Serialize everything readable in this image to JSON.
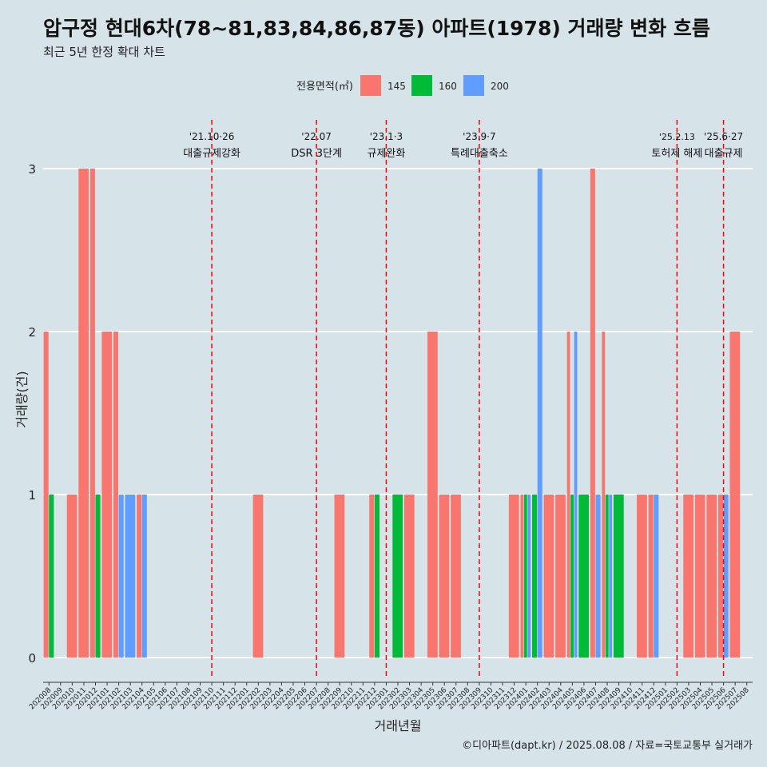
{
  "title": "압구정 현대6차(78~81,83,84,86,87동) 아파트(1978) 거래량 변화 흐름",
  "subtitle": "최근 5년 한정 확대 차트",
  "caption": "©디아파트(dapt.kr) / 2025.08.08 / 자료=국토교통부 실거래가",
  "colors": {
    "145": "#F8766D",
    "160": "#00BA38",
    "200": "#619CFF",
    "background": "#d6e4ea",
    "grid": "#ffffff",
    "event_line": "#ff0000"
  },
  "chart_data": {
    "type": "bar",
    "xlabel": "거래년월",
    "ylabel": "거래량(건)",
    "ylim": [
      0,
      3
    ],
    "yticks": [
      0,
      1,
      2,
      3
    ],
    "grid": true,
    "legend": {
      "title": "전용면적(㎡)",
      "placement": "top",
      "entries": [
        "145",
        "160",
        "200"
      ]
    },
    "categories": [
      "202008",
      "202009",
      "202010",
      "202011",
      "202012",
      "202101",
      "202102",
      "202103",
      "202104",
      "202105",
      "202106",
      "202107",
      "202108",
      "202109",
      "202110",
      "202111",
      "202112",
      "202201",
      "202202",
      "202203",
      "202204",
      "202205",
      "202206",
      "202207",
      "202208",
      "202209",
      "202210",
      "202211",
      "202212",
      "202301",
      "202302",
      "202303",
      "202304",
      "202305",
      "202306",
      "202307",
      "202308",
      "202309",
      "202310",
      "202311",
      "202312",
      "202401",
      "202402",
      "202403",
      "202404",
      "202405",
      "202406",
      "202407",
      "202408",
      "202409",
      "202410",
      "202411",
      "202412",
      "202501",
      "202502",
      "202503",
      "202504",
      "202505",
      "202506",
      "202507",
      "202508"
    ],
    "series": [
      {
        "name": "145",
        "values": [
          2,
          0,
          1,
          3,
          3,
          2,
          2,
          0,
          1,
          0,
          0,
          0,
          0,
          0,
          0,
          0,
          0,
          0,
          1,
          0,
          0,
          0,
          0,
          0,
          0,
          1,
          0,
          0,
          1,
          0,
          0,
          1,
          0,
          2,
          1,
          1,
          0,
          0,
          0,
          0,
          1,
          1,
          0,
          1,
          1,
          2,
          0,
          3,
          2,
          0,
          0,
          1,
          1,
          0,
          0,
          1,
          1,
          1,
          1,
          2,
          0
        ]
      },
      {
        "name": "160",
        "values": [
          1,
          0,
          0,
          0,
          1,
          0,
          0,
          0,
          0,
          0,
          0,
          0,
          0,
          0,
          0,
          0,
          0,
          0,
          0,
          0,
          0,
          0,
          0,
          0,
          0,
          0,
          0,
          0,
          1,
          0,
          1,
          0,
          0,
          0,
          0,
          0,
          0,
          0,
          0,
          0,
          0,
          1,
          1,
          0,
          0,
          1,
          1,
          0,
          1,
          1,
          0,
          0,
          0,
          0,
          0,
          0,
          0,
          0,
          0,
          0,
          0
        ]
      },
      {
        "name": "200",
        "values": [
          0,
          0,
          0,
          0,
          0,
          0,
          1,
          1,
          1,
          0,
          0,
          0,
          0,
          0,
          0,
          0,
          0,
          0,
          0,
          0,
          0,
          0,
          0,
          0,
          0,
          0,
          0,
          0,
          0,
          0,
          0,
          0,
          0,
          0,
          0,
          0,
          0,
          0,
          0,
          0,
          0,
          1,
          3,
          0,
          0,
          2,
          0,
          1,
          1,
          0,
          0,
          0,
          1,
          0,
          0,
          0,
          0,
          0,
          1,
          0,
          0
        ]
      }
    ],
    "annotations": [
      {
        "date": "'21.10·26",
        "label": "대출규제강화",
        "position": 14.5
      },
      {
        "date": "'22.07",
        "label": "DSR 3단계",
        "position": 23.5
      },
      {
        "date": "'23.1·3",
        "label": "규제완화",
        "position": 29.5
      },
      {
        "date": "'23.9·7",
        "label": "특례대출축소",
        "position": 37.5
      },
      {
        "date": "'25.2.13",
        "label": "토허제 해제",
        "position": 54.5
      },
      {
        "date": "'25.6·27",
        "label": "대출규제",
        "position": 58.5
      }
    ]
  }
}
